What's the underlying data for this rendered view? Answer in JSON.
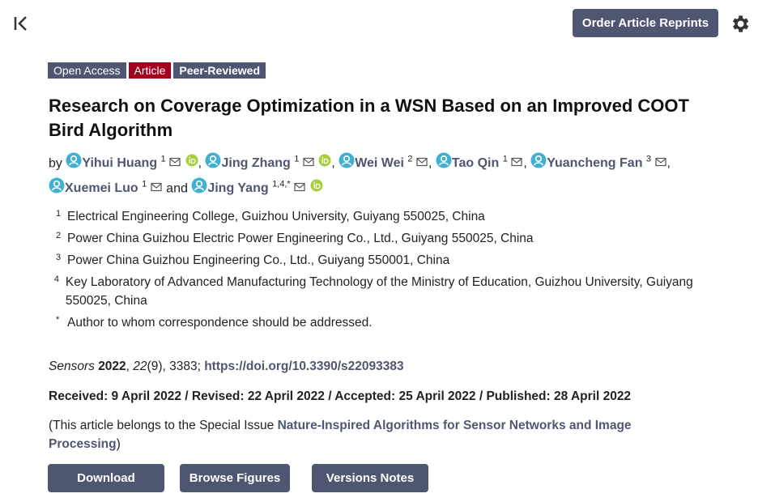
{
  "header": {
    "button": "Order Article Reprints"
  },
  "badges": [
    "Open Access",
    "Article",
    "Peer-Reviewed"
  ],
  "title": "Research on Coverage Optimization in a WSN Based on an Improved COOT Bird Algorithm",
  "by": "by",
  "and": "and",
  "authors": [
    {
      "name": "Yihui Huang",
      "sup": "1",
      "orcid": true,
      "sep": ","
    },
    {
      "name": "Jing Zhang",
      "sup": "1",
      "orcid": true,
      "sep": ","
    },
    {
      "name": "Wei Wei",
      "sup": "2",
      "orcid": false,
      "sep": ","
    },
    {
      "name": "Tao Qin",
      "sup": "1",
      "orcid": false,
      "sep": ","
    },
    {
      "name": "Yuancheng Fan",
      "sup": "3",
      "orcid": false,
      "sep": ","
    },
    {
      "name": "Xuemei Luo",
      "sup": "1",
      "orcid": false
    },
    {
      "name": "Jing Yang",
      "sup": "1,4,*",
      "orcid": true
    }
  ],
  "affiliations": [
    {
      "mark": "1",
      "text": "Electrical Engineering College, Guizhou University, Guiyang 550025, China"
    },
    {
      "mark": "2",
      "text": "Power China Guizhou Electric Power Engineering Co., Ltd., Guiyang 550025, China"
    },
    {
      "mark": "3",
      "text": "Power China Guizhou Engineering Co., Ltd., Guiyang 550001, China"
    },
    {
      "mark": "4",
      "text": "Key Laboratory of Advanced Manufacturing Technology of the Ministry of Education, Guizhou University, Guiyang 550025, China"
    },
    {
      "mark": "*",
      "text": "Author to whom correspondence should be addressed."
    }
  ],
  "citation": {
    "journal": "Sensors",
    "year": "2022",
    "sep": ",",
    "volume": "22",
    "rest": "(9), 3383;",
    "doi": "https://doi.org/10.3390/s22093383"
  },
  "dates": "Received: 9 April 2022 / Revised: 22 April 2022 / Accepted: 25 April 2022 / Published: 28 April 2022",
  "special_issue": {
    "prefix": "(This article belongs to the Special Issue",
    "link": "Nature-Inspired Algorithms for Sensor Networks and Image Processing",
    "suffix": ")"
  },
  "actions": [
    "Download",
    "Browse Figures",
    "Versions Notes"
  ]
}
